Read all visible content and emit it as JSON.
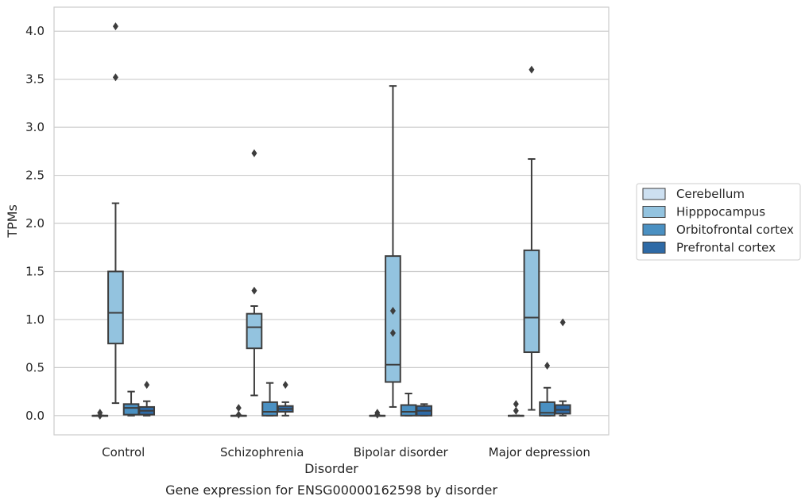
{
  "chart_data": {
    "type": "box",
    "caption": "Gene expression for ENSG00000162598 by disorder",
    "xlabel": "Disorder",
    "ylabel": "TPMs",
    "ylim": [
      -0.2,
      4.25
    ],
    "yticks": [
      "0.0",
      "0.5",
      "1.0",
      "1.5",
      "2.0",
      "2.5",
      "3.0",
      "3.5",
      "4.0"
    ],
    "grid": "horizontal",
    "legend_position": "right",
    "categories": [
      "Control",
      "Schizophrenia",
      "Bipolar disorder",
      "Major depression"
    ],
    "series": [
      {
        "name": "Cerebellum",
        "color": "#cde0f1",
        "boxes": [
          {
            "q1": 0.0,
            "median": 0.0,
            "q3": 0.0,
            "whislo": 0.0,
            "whishi": 0.0,
            "fliers": [
              0.03,
              0.0
            ]
          },
          {
            "q1": 0.0,
            "median": 0.0,
            "q3": 0.0,
            "whislo": 0.0,
            "whishi": 0.0,
            "fliers": [
              0.08,
              0.01
            ]
          },
          {
            "q1": 0.0,
            "median": 0.0,
            "q3": 0.0,
            "whislo": 0.0,
            "whishi": 0.0,
            "fliers": [
              0.03,
              0.01
            ]
          },
          {
            "q1": 0.0,
            "median": 0.0,
            "q3": 0.0,
            "whislo": 0.0,
            "whishi": 0.0,
            "fliers": [
              0.12,
              0.05
            ]
          }
        ]
      },
      {
        "name": "Hipppocampus",
        "color": "#93c3df",
        "boxes": [
          {
            "q1": 0.75,
            "median": 1.07,
            "q3": 1.5,
            "whislo": 0.13,
            "whishi": 2.21,
            "fliers": [
              3.52,
              4.05
            ]
          },
          {
            "q1": 0.7,
            "median": 0.92,
            "q3": 1.06,
            "whislo": 0.21,
            "whishi": 1.14,
            "fliers": [
              2.73,
              1.3
            ]
          },
          {
            "q1": 0.35,
            "median": 0.53,
            "q3": 1.66,
            "whislo": 0.09,
            "whishi": 3.43,
            "fliers": [
              1.09,
              0.86
            ]
          },
          {
            "q1": 0.66,
            "median": 1.02,
            "q3": 1.72,
            "whislo": 0.06,
            "whishi": 2.67,
            "fliers": [
              3.6
            ]
          }
        ]
      },
      {
        "name": "Orbitofrontal cortex",
        "color": "#4a90c2",
        "boxes": [
          {
            "q1": 0.01,
            "median": 0.08,
            "q3": 0.12,
            "whislo": 0.0,
            "whishi": 0.25,
            "fliers": []
          },
          {
            "q1": 0.0,
            "median": 0.04,
            "q3": 0.14,
            "whislo": 0.0,
            "whishi": 0.34,
            "fliers": []
          },
          {
            "q1": 0.0,
            "median": 0.04,
            "q3": 0.11,
            "whislo": 0.0,
            "whishi": 0.23,
            "fliers": []
          },
          {
            "q1": 0.0,
            "median": 0.03,
            "q3": 0.14,
            "whislo": 0.0,
            "whishi": 0.29,
            "fliers": [
              0.52
            ]
          }
        ]
      },
      {
        "name": "Prefrontal cortex",
        "color": "#2e6aa6",
        "boxes": [
          {
            "q1": 0.01,
            "median": 0.05,
            "q3": 0.09,
            "whislo": 0.0,
            "whishi": 0.15,
            "fliers": [
              0.32
            ]
          },
          {
            "q1": 0.04,
            "median": 0.07,
            "q3": 0.1,
            "whislo": 0.0,
            "whishi": 0.14,
            "fliers": [
              0.32
            ]
          },
          {
            "q1": 0.0,
            "median": 0.05,
            "q3": 0.1,
            "whislo": 0.0,
            "whishi": 0.12,
            "fliers": []
          },
          {
            "q1": 0.02,
            "median": 0.06,
            "q3": 0.11,
            "whislo": 0.0,
            "whishi": 0.15,
            "fliers": [
              0.97
            ]
          }
        ]
      }
    ]
  }
}
